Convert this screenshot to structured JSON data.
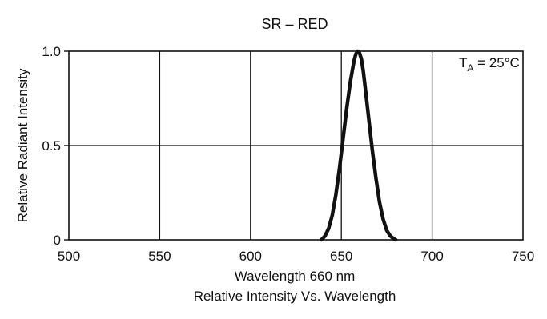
{
  "chart_data": {
    "type": "line",
    "title": "SR – RED",
    "xlabel": "Wavelength 660 nm",
    "ylabel": "Relative Radiant Intensity",
    "caption": "Relative Intensity Vs. Wavelength",
    "annotation": {
      "prefix": "T",
      "subscript": "A",
      "suffix": " = 25°C"
    },
    "xlim": [
      500,
      750
    ],
    "ylim": [
      0,
      1.0
    ],
    "x_ticks": [
      {
        "value": 500,
        "label": "500"
      },
      {
        "value": 550,
        "label": "550"
      },
      {
        "value": 600,
        "label": "600"
      },
      {
        "value": 650,
        "label": "650"
      },
      {
        "value": 700,
        "label": "700"
      },
      {
        "value": 750,
        "label": "750"
      }
    ],
    "y_ticks": [
      {
        "value": 0,
        "label": "0"
      },
      {
        "value": 0.5,
        "label": "0.5"
      },
      {
        "value": 1.0,
        "label": "1.0"
      }
    ],
    "grid": true,
    "series": [
      {
        "color": "#111111",
        "x": [
          639,
          641,
          643,
          645,
          647,
          649,
          651,
          653,
          655,
          657,
          658,
          659,
          660,
          661,
          662,
          663,
          665,
          667,
          669,
          671,
          673,
          675,
          677,
          679,
          680
        ],
        "y": [
          0.0,
          0.02,
          0.06,
          0.13,
          0.24,
          0.38,
          0.54,
          0.7,
          0.84,
          0.95,
          0.985,
          1.0,
          0.99,
          0.96,
          0.9,
          0.82,
          0.65,
          0.48,
          0.33,
          0.2,
          0.11,
          0.05,
          0.02,
          0.005,
          0.0
        ]
      }
    ]
  }
}
